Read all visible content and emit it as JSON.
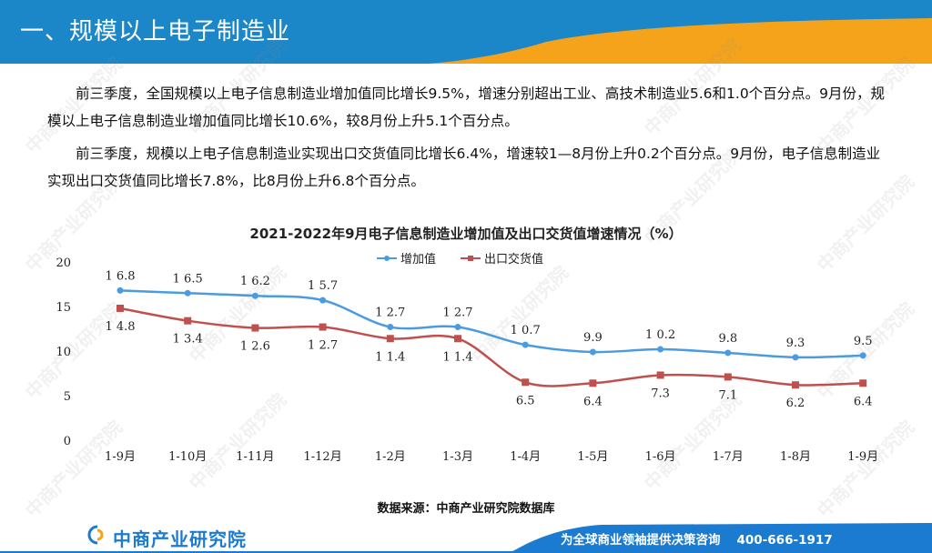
{
  "header": {
    "title": "一、规模以上电子制造业"
  },
  "body": {
    "paragraph1": "前三季度，全国规模以上电子信息制造业增加值同比增长9.5%，增速分别超出工业、高技术制造业5.6和1.0个百分点。9月份，规模以上电子信息制造业增加值同比增长10.6%，较8月份上升5.1个百分点。",
    "paragraph2": "前三季度，规模以上电子信息制造业实现出口交货值同比增长6.4%，增速较1—8月份上升0.2个百分点。9月份，电子信息制造业实现出口交货值同比增长7.8%，比8月份上升6.8个百分点。"
  },
  "chart_data": {
    "type": "line",
    "title": "2021-2022年9月电子信息制造业增加值及出口交货值增速情况（%）",
    "categories": [
      "1-9月",
      "1-10月",
      "1-11月",
      "1-12月",
      "1-2月",
      "1-3月",
      "1-4月",
      "1-5月",
      "1-6月",
      "1-7月",
      "1-8月",
      "1-9月"
    ],
    "series": [
      {
        "name": "增加值",
        "color": "#4a9be0",
        "marker": "circle",
        "values": [
          16.8,
          16.5,
          16.2,
          15.7,
          12.7,
          12.7,
          10.7,
          9.9,
          10.2,
          9.8,
          9.3,
          9.5
        ]
      },
      {
        "name": "出口交货值",
        "color": "#c0504d",
        "marker": "square",
        "values": [
          14.8,
          13.4,
          12.6,
          12.7,
          11.4,
          11.4,
          6.5,
          6.4,
          7.3,
          7.1,
          6.2,
          6.4
        ]
      }
    ],
    "yticks": [
      "0",
      "5",
      "10",
      "15",
      "20"
    ],
    "ylim": [
      0,
      20
    ],
    "legend": "top-center",
    "grid": false
  },
  "source": {
    "text": "数据来源：中商产业研究院数据库"
  },
  "footer": {
    "logo_text": "中商产业研究院",
    "slogan": "为全球商业领袖提供决策咨询",
    "phone": "400-666-1917"
  },
  "watermark": {
    "text": "中商产业研究院"
  },
  "colors": {
    "header_blue": "#1b86c8",
    "header_orange": "#f5a31a",
    "footer_blue": "#1b7bd1"
  }
}
